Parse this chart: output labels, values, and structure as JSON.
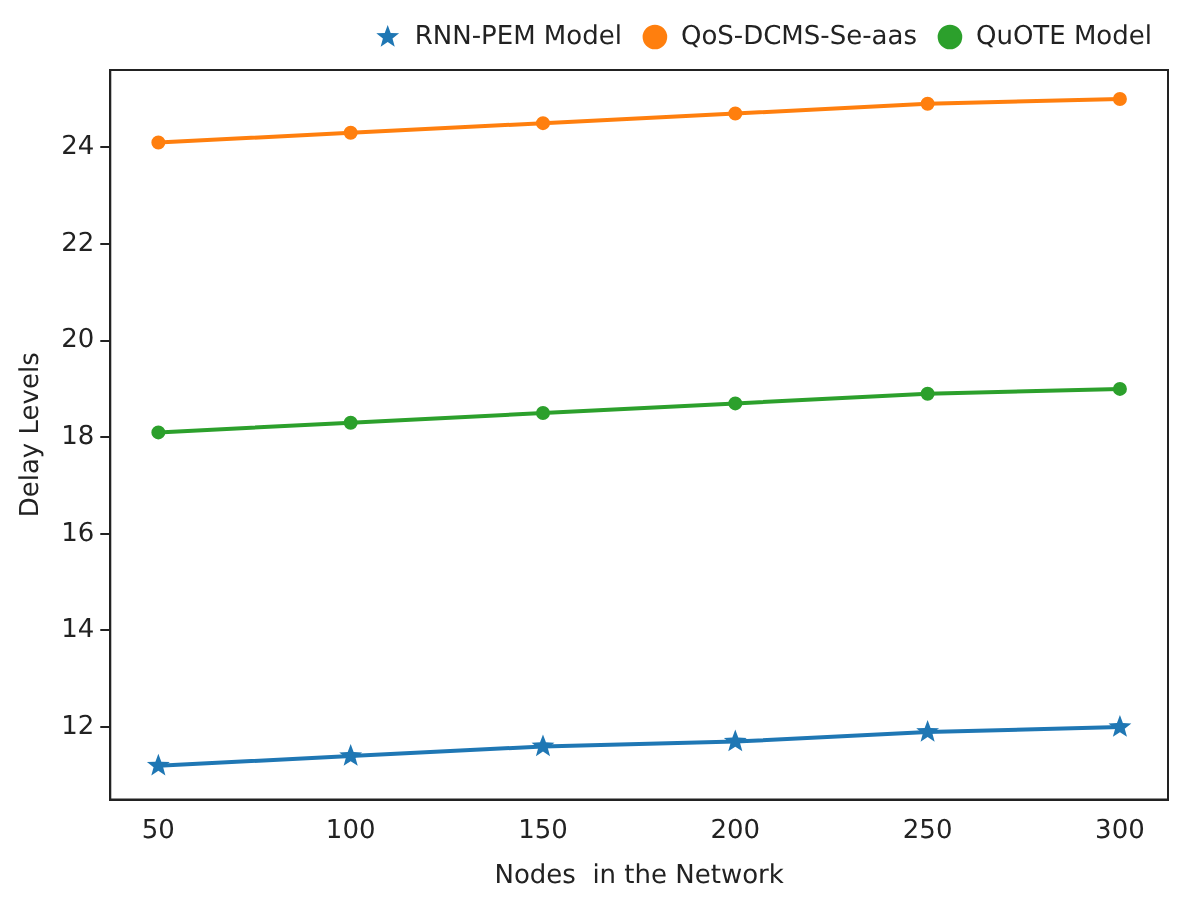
{
  "chart_data": {
    "type": "line",
    "xlabel": "Nodes  in the Network",
    "ylabel": "Delay Levels",
    "x": [
      50,
      100,
      150,
      200,
      250,
      300
    ],
    "series": [
      {
        "name": "RNN-PEM Model",
        "color": "#1f77b4",
        "marker": "star",
        "values": [
          11.2,
          11.4,
          11.6,
          11.7,
          11.9,
          12.0
        ]
      },
      {
        "name": "QoS-DCMS-Se-aas",
        "color": "#ff7f0e",
        "marker": "circle",
        "values": [
          24.1,
          24.3,
          24.5,
          24.7,
          24.9,
          25.0
        ]
      },
      {
        "name": "QuOTE Model",
        "color": "#2ca02c",
        "marker": "circle",
        "values": [
          18.1,
          18.3,
          18.5,
          18.7,
          18.9,
          19.0
        ]
      }
    ],
    "xlim": [
      37.5,
      312.5
    ],
    "xticks": [
      50,
      100,
      150,
      200,
      250,
      300
    ],
    "ylim": [
      10.5,
      25.6
    ],
    "yticks": [
      12,
      14,
      16,
      18,
      20,
      22,
      24
    ],
    "grid": false,
    "legend": "top right",
    "line_style": "solid"
  }
}
